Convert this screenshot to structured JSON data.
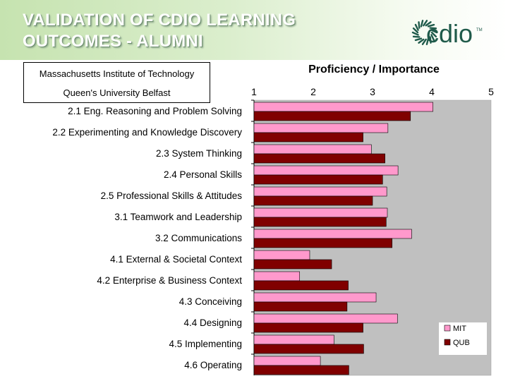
{
  "slide": {
    "title_line1": "VALIDATION OF CDIO LEARNING",
    "title_line2": "OUTCOMES - ALUMNI",
    "logo_text": "cdio",
    "logo_tm": "TM",
    "school_1": "Massachusetts Institute of Technology",
    "school_2": "Queen's University Belfast"
  },
  "colors": {
    "mit": "#ff99cc",
    "qub": "#800000",
    "plot_bg": "#c0c0c0",
    "logo": "#1f5a4a"
  },
  "chart_data": {
    "type": "bar",
    "orientation": "horizontal",
    "title": "Proficiency / Importance",
    "xlim": [
      1,
      5
    ],
    "xticks": [
      "1",
      "2",
      "3",
      "4",
      "5"
    ],
    "categories": [
      "2.1 Eng. Reasoning and Problem Solving",
      "2.2 Experimenting and Knowledge Discovery",
      "2.3 System Thinking",
      "2.4 Personal Skills",
      "2.5 Professional Skills & Attitudes",
      "3.1 Teamwork and Leadership",
      "3.2 Communications",
      "4.1 External & Societal Context",
      "4.2 Enterprise & Business Context",
      "4.3 Conceiving",
      "4.4 Designing",
      "4.5 Implementing",
      "4.6 Operating"
    ],
    "series": [
      {
        "name": "MIT",
        "values": [
          4.02,
          3.26,
          2.98,
          3.43,
          3.24,
          3.25,
          3.66,
          1.94,
          1.77,
          3.06,
          3.42,
          2.35,
          2.12
        ]
      },
      {
        "name": "QUB",
        "values": [
          3.64,
          2.84,
          3.21,
          3.17,
          3.0,
          3.23,
          3.33,
          2.31,
          2.59,
          2.57,
          2.84,
          2.85,
          2.6
        ]
      }
    ],
    "legend": {
      "entries": [
        "MIT",
        "QUB"
      ],
      "position": "bottom-right"
    }
  }
}
